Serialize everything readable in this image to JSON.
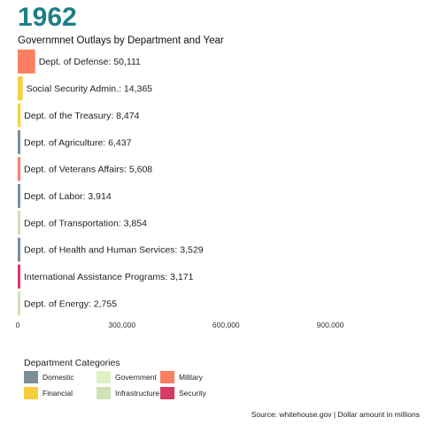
{
  "chart_data": {
    "type": "bar",
    "orientation": "horizontal",
    "title": "1962",
    "subtitle": "Governmnet Outlays by Department and Year",
    "bars": [
      {
        "label": "Dept. of Defense",
        "value": 50111,
        "value_label": "50,111",
        "category": "Military"
      },
      {
        "label": "Social Security Admin.",
        "value": 14365,
        "value_label": "14,365",
        "category": "Financial"
      },
      {
        "label": "Dept. of the Treasury",
        "value": 8474,
        "value_label": "8,474",
        "category": "Financial"
      },
      {
        "label": "Dept. of Agriculture",
        "value": 6437,
        "value_label": "6,437",
        "category": "Domestic"
      },
      {
        "label": "Dept. of Veterans Affairs",
        "value": 5608,
        "value_label": "5,608",
        "category": "Military"
      },
      {
        "label": "Dept. of Labor",
        "value": 3914,
        "value_label": "3,914",
        "category": "Domestic"
      },
      {
        "label": "Dept. of Transportation",
        "value": 3854,
        "value_label": "3,854",
        "category": "Infrastructure"
      },
      {
        "label": "Dept. of Health and Human Services",
        "value": 3529,
        "value_label": "3,529",
        "category": "Domestic"
      },
      {
        "label": "International Assistance Programs",
        "value": 3171,
        "value_label": "3,171",
        "category": "Security"
      },
      {
        "label": "Dept. of Energy",
        "value": 2755,
        "value_label": "2,755",
        "category": "Infrastructure"
      }
    ],
    "x_ticks": [
      {
        "value": 0,
        "label": "0"
      },
      {
        "value": 300000,
        "label": "300,000"
      },
      {
        "value": 600000,
        "label": "600,000"
      },
      {
        "value": 900000,
        "label": "900,000"
      }
    ],
    "xlim": [
      0,
      1150000
    ],
    "grid": false,
    "legend": {
      "title": "Department Categories",
      "placement": "bottom-left",
      "items": [
        {
          "name": "Domestic",
          "color": "#7b8d97"
        },
        {
          "name": "Financial",
          "color": "#f7cf3e"
        },
        {
          "name": "Government",
          "color": "#ddf2c2"
        },
        {
          "name": "Infrastructure",
          "color": "#cfe3b6"
        },
        {
          "name": "Military",
          "color": "#fa7f62"
        },
        {
          "name": "Security",
          "color": "#d53a63"
        }
      ]
    },
    "source": "Source: whitehouse.gov | Dollar amount in millions"
  }
}
